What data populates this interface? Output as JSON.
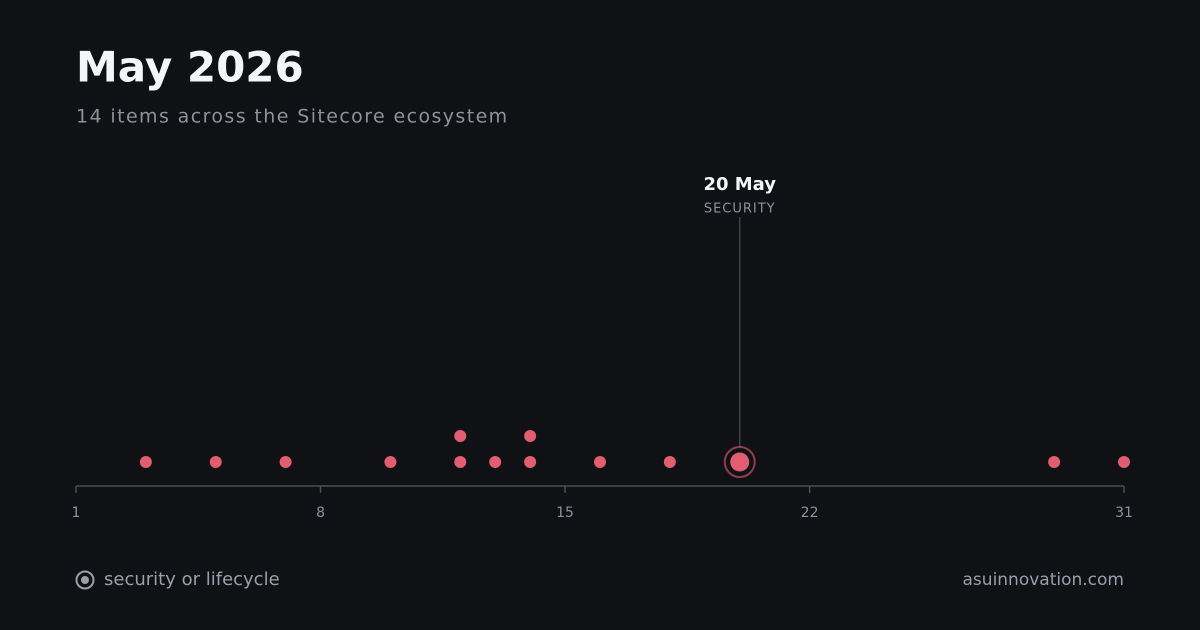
{
  "chart_data": {
    "type": "strip",
    "title": "May 2026",
    "subtitle": "14 items across the Sitecore ecosystem",
    "x": [
      3,
      5,
      7,
      10,
      12,
      12,
      13,
      14,
      14,
      16,
      18,
      20,
      29,
      31
    ],
    "color": "#e35d70",
    "xlim": [
      1,
      31
    ],
    "xticks": [
      1,
      8,
      15,
      22,
      31
    ],
    "annotation": {
      "x": 20,
      "label": "20 May",
      "category": "SECURITY"
    },
    "legend": "security or lifecycle",
    "footer": "asuinnovation.com"
  }
}
